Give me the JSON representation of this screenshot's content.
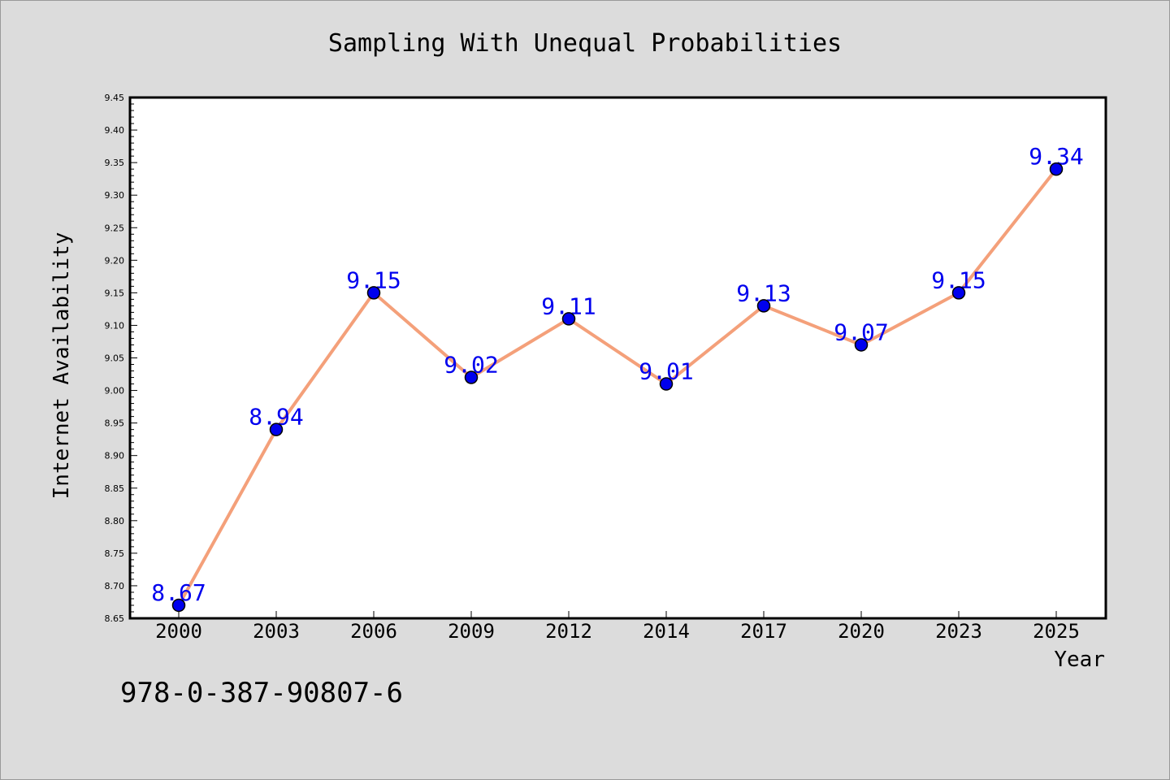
{
  "chart_data": {
    "type": "line",
    "title": "Sampling With Unequal Probabilities",
    "xlabel": "Year",
    "ylabel": "Internet Availability",
    "categories": [
      "2000",
      "2003",
      "2006",
      "2009",
      "2012",
      "2014",
      "2017",
      "2020",
      "2023",
      "2025"
    ],
    "series": [
      {
        "values": [
          8.67,
          8.94,
          9.15,
          9.02,
          9.11,
          9.01,
          9.13,
          9.07,
          9.15,
          9.34
        ],
        "data_labels": [
          "8.67",
          "8.94",
          "9.15",
          "9.02",
          "9.11",
          "9.01",
          "9.13",
          "9.07",
          "9.15",
          "9.34"
        ],
        "line_color": "#f4a07a",
        "marker_color": "#0000ee"
      }
    ],
    "ylim": [
      8.65,
      9.45
    ],
    "yticks": [
      "8.65",
      "8.70",
      "8.75",
      "8.80",
      "8.85",
      "8.90",
      "8.95",
      "9.00",
      "9.05",
      "9.10",
      "9.15",
      "9.20",
      "9.25",
      "9.30",
      "9.35",
      "9.40",
      "9.45"
    ],
    "grid": false,
    "legend": "none",
    "annotation": "978-0-387-90807-6",
    "colors": {
      "background": "#dcdcdc",
      "plot_background": "#ffffff",
      "label_color": "#0000ee",
      "text": "#000000"
    }
  }
}
